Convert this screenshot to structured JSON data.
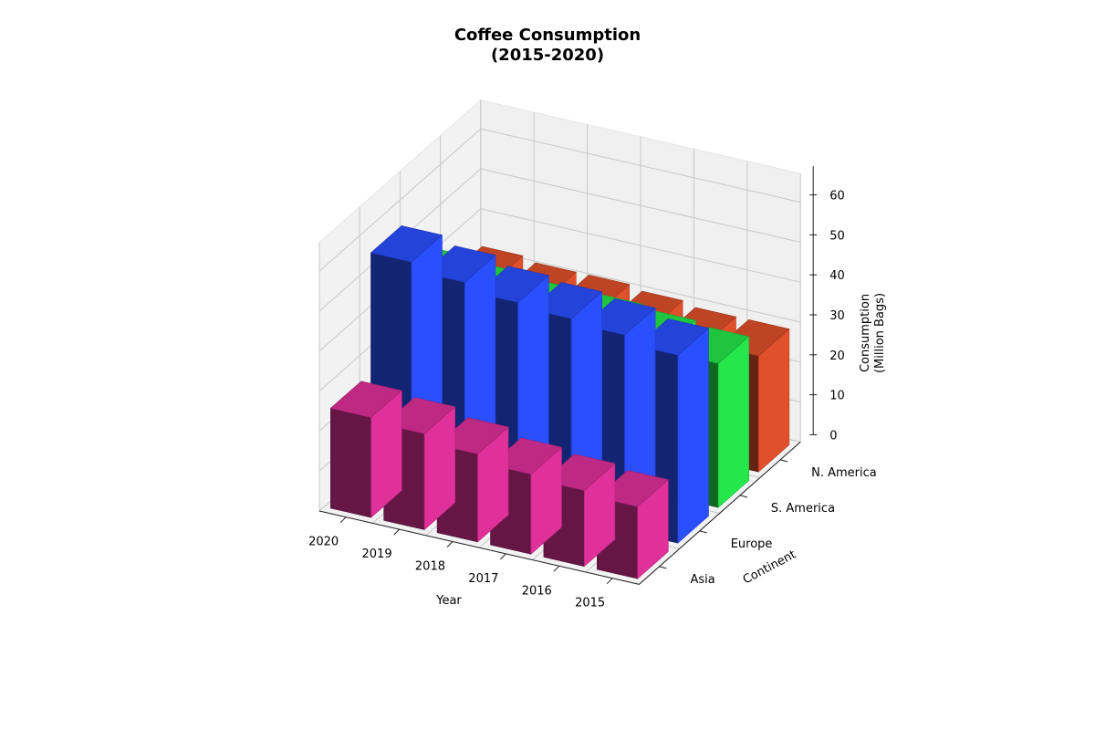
{
  "chart_data": {
    "type": "bar3d",
    "title_line1": "Coffee Consumption",
    "title_line2": "(2015-2020)",
    "xlabel": "Year",
    "ylabel": "Continent",
    "zlabel_line1": "Consumption",
    "zlabel_line2": "(Million Bags)",
    "years": [
      "2020",
      "2019",
      "2018",
      "2017",
      "2016",
      "2015"
    ],
    "continents": [
      "Asia",
      "Europe",
      "S. America",
      "N. America"
    ],
    "zlim": [
      0,
      60
    ],
    "zticks": [
      "0",
      "10",
      "20",
      "30",
      "40",
      "50",
      "60"
    ],
    "grid": true,
    "series": [
      {
        "continent": "Asia",
        "color": "#e0309a",
        "values": [
          25,
          24,
          22,
          20,
          19,
          18
        ]
      },
      {
        "continent": "Europe",
        "color": "#2a4fff",
        "values": [
          55,
          53,
          51,
          50,
          49,
          47
        ]
      },
      {
        "continent": "S. America",
        "color": "#25e64a",
        "values": [
          40,
          39,
          38,
          38,
          37,
          36
        ]
      },
      {
        "continent": "N. America",
        "color": "#e0502a",
        "values": [
          32,
          31,
          31,
          30,
          29,
          29
        ]
      }
    ]
  }
}
